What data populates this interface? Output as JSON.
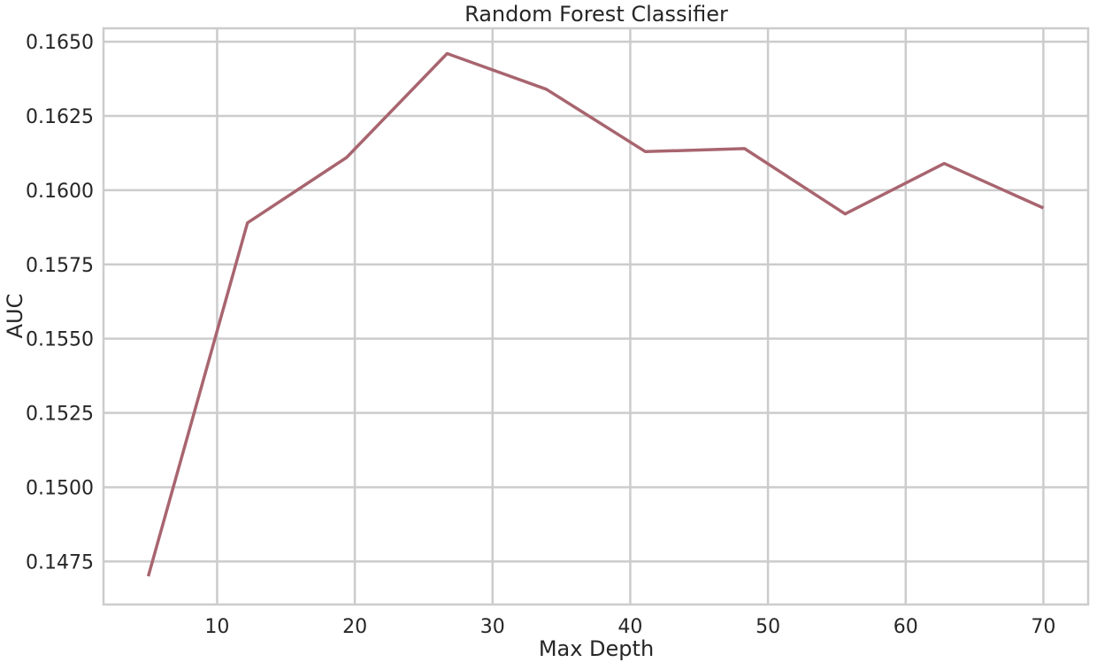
{
  "chart_data": {
    "type": "line",
    "title": "Random Forest Classifier",
    "xlabel": "Max Depth",
    "ylabel": "AUC",
    "xlim": [
      1.75,
      73.25
    ],
    "ylim": [
      0.14605,
      0.16545
    ],
    "xticks": [
      10,
      20,
      30,
      40,
      50,
      60,
      70
    ],
    "xtick_labels": [
      "10",
      "20",
      "30",
      "40",
      "50",
      "60",
      "70"
    ],
    "yticks": [
      0.1475,
      0.15,
      0.1525,
      0.155,
      0.1575,
      0.16,
      0.1625,
      0.165
    ],
    "ytick_labels": [
      "0.1475",
      "0.1500",
      "0.1525",
      "0.1550",
      "0.1575",
      "0.1600",
      "0.1625",
      "0.1650"
    ],
    "grid": true,
    "series": [
      {
        "color": "#a8656f",
        "x": [
          5,
          12.2,
          19.4,
          26.7,
          33.9,
          41.1,
          48.3,
          55.6,
          62.8,
          70
        ],
        "y": [
          0.147,
          0.1589,
          0.1611,
          0.1646,
          0.1634,
          0.1613,
          0.1614,
          0.1592,
          0.1609,
          0.1594
        ]
      }
    ]
  }
}
